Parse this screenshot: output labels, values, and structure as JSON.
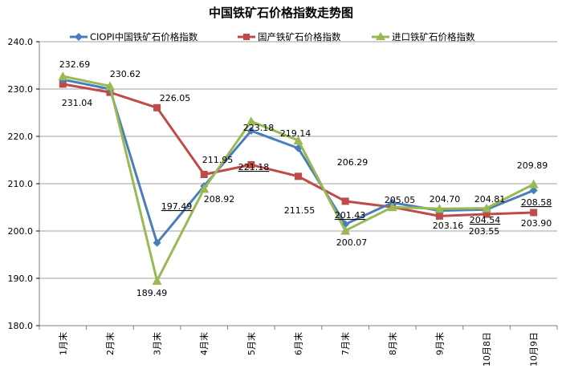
{
  "chart_data": {
    "type": "line",
    "title": "中国铁矿石价格指数走势图",
    "xlabel": "",
    "ylabel": "",
    "categories": [
      "1月末",
      "2月末",
      "3月末",
      "4月末",
      "5月末",
      "6月末",
      "7月末",
      "8月末",
      "9月末",
      "10月8日",
      "10月9日"
    ],
    "ylim": [
      180,
      240
    ],
    "yticks": [
      "180.0",
      "190.0",
      "200.0",
      "210.0",
      "220.0",
      "230.0",
      "240.0"
    ],
    "grid": true,
    "legend_position": "top",
    "series": [
      {
        "name": "CIOPI中国铁矿石价格指数",
        "color": "#4a7ebb",
        "marker": "diamond",
        "values": [
          232.0,
          230.0,
          197.49,
          209.5,
          221.18,
          217.5,
          201.43,
          206.0,
          204.3,
          204.54,
          208.58
        ]
      },
      {
        "name": "国产铁矿石价格指数",
        "color": "#be4b48",
        "marker": "square",
        "values": [
          231.04,
          229.3,
          226.05,
          211.95,
          214.0,
          211.55,
          206.29,
          205.05,
          203.16,
          203.55,
          203.9
        ]
      },
      {
        "name": "进口铁矿石价格指数",
        "color": "#98b954",
        "marker": "triangle",
        "values": [
          232.69,
          230.62,
          189.49,
          208.92,
          223.18,
          219.14,
          200.07,
          205.05,
          204.7,
          204.81,
          209.89
        ]
      }
    ],
    "annotations": [
      {
        "text": "232.69"
      },
      {
        "text": "231.04"
      },
      {
        "text": "230.62"
      },
      {
        "text": "226.05"
      },
      {
        "text": "197.49",
        "underline": true
      },
      {
        "text": "189.49"
      },
      {
        "text": "211.95"
      },
      {
        "text": "208.92"
      },
      {
        "text": "223.18"
      },
      {
        "text": "221.18",
        "underline": true
      },
      {
        "text": "219.14"
      },
      {
        "text": "211.55"
      },
      {
        "text": "206.29"
      },
      {
        "text": "201.43",
        "underline": true
      },
      {
        "text": "200.07"
      },
      {
        "text": "205.05"
      },
      {
        "text": "204.70"
      },
      {
        "text": "203.16"
      },
      {
        "text": "204.81"
      },
      {
        "text": "204.54",
        "underline": true
      },
      {
        "text": "203.55"
      },
      {
        "text": "209.89"
      },
      {
        "text": "208.58",
        "underline": true
      },
      {
        "text": "203.90"
      }
    ]
  }
}
